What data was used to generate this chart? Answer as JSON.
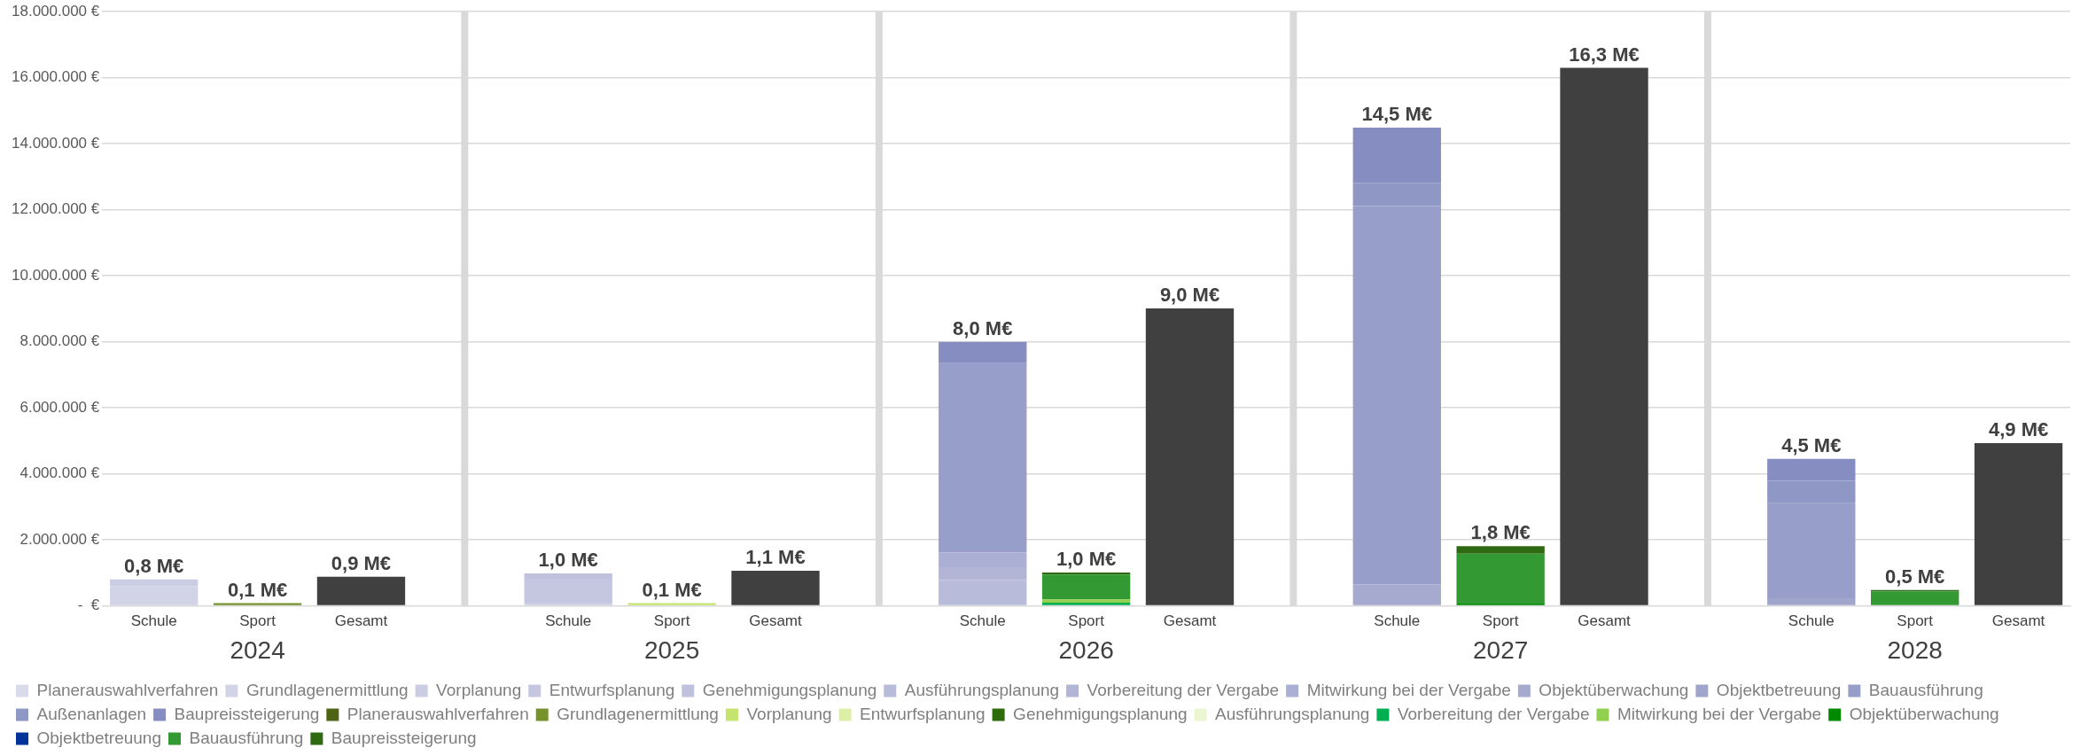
{
  "chart_data": {
    "type": "bar",
    "stacked": true,
    "grid": true,
    "legend": "bottom",
    "categories": [
      "Schule",
      "Sport",
      "Gesamt",
      null,
      "Schule",
      "Sport",
      "Gesamt",
      null,
      "Schule",
      "Sport",
      "Gesamt",
      null,
      "Schule",
      "Sport",
      "Gesamt",
      null,
      "Schule",
      "Sport",
      "Gesamt"
    ],
    "annotations": [
      "2024",
      "2025",
      "2026",
      "2027",
      "2028"
    ],
    "ylim": [
      0,
      18000000
    ],
    "yticks": [
      {
        "value": 0,
        "label": "-  €"
      },
      {
        "value": 2000000,
        "label": "2.000.000 €"
      },
      {
        "value": 4000000,
        "label": "4.000.000 €"
      },
      {
        "value": 6000000,
        "label": "6.000.000 €"
      },
      {
        "value": 8000000,
        "label": "8.000.000 €"
      },
      {
        "value": 10000000,
        "label": "10.000.000 €"
      },
      {
        "value": 12000000,
        "label": "12.000.000 €"
      },
      {
        "value": 14000000,
        "label": "14.000.000 €"
      },
      {
        "value": 16000000,
        "label": "16.000.000 €"
      },
      {
        "value": 18000000,
        "label": "18.000.000 €"
      }
    ],
    "totals": [
      "0,8 M€",
      "0,1 M€",
      "0,9 M€",
      null,
      "1,0 M€",
      "0,1 M€",
      "1,1 M€",
      null,
      "8,0 M€",
      "1,0 M€",
      "9,0 M€",
      null,
      "14,5 M€",
      "1,8 M€",
      "16,3 M€",
      null,
      "4,5 M€",
      "0,5 M€",
      "4,9 M€"
    ],
    "series": [
      {
        "name": "Planerauswahlverfahren",
        "color": "#d9daea",
        "values": [
          null,
          null,
          null,
          null,
          null,
          null,
          null,
          null,
          null,
          null,
          null,
          null,
          null,
          null,
          null,
          null,
          null,
          null,
          null
        ]
      },
      {
        "name": "Grundlagenermittlung",
        "color": "#d2d3e6",
        "values": [
          600000,
          null,
          null,
          null,
          null,
          null,
          null,
          null,
          null,
          null,
          null,
          null,
          null,
          null,
          null,
          null,
          null,
          null,
          null
        ]
      },
      {
        "name": "Vorplanung",
        "color": "#cbcde3",
        "values": [
          200000,
          null,
          null,
          null,
          100000,
          null,
          null,
          null,
          null,
          null,
          null,
          null,
          null,
          null,
          null,
          null,
          null,
          null,
          null
        ]
      },
      {
        "name": "Entwurfsplanung",
        "color": "#c5c7e0",
        "values": [
          null,
          null,
          null,
          null,
          720000,
          null,
          null,
          null,
          null,
          null,
          null,
          null,
          null,
          null,
          null,
          null,
          null,
          null,
          null
        ]
      },
      {
        "name": "Genehmigungsplanung",
        "color": "#bfc1dd",
        "values": [
          null,
          null,
          null,
          null,
          160000,
          null,
          null,
          null,
          null,
          null,
          null,
          null,
          null,
          null,
          null,
          null,
          null,
          null,
          null
        ]
      },
      {
        "name": "Ausführungsplanung",
        "color": "#b8bbd9",
        "values": [
          null,
          null,
          null,
          null,
          null,
          null,
          null,
          null,
          780000,
          null,
          null,
          null,
          null,
          null,
          null,
          null,
          null,
          null,
          null
        ]
      },
      {
        "name": "Vorbereitung der Vergabe",
        "color": "#b2b5d6",
        "values": [
          null,
          null,
          null,
          null,
          null,
          null,
          null,
          null,
          390000,
          null,
          null,
          null,
          null,
          null,
          null,
          null,
          null,
          null,
          null
        ]
      },
      {
        "name": "Mitwirkung bei der Vergabe",
        "color": "#abafd3",
        "values": [
          null,
          null,
          null,
          null,
          null,
          null,
          null,
          null,
          450000,
          null,
          null,
          null,
          null,
          null,
          null,
          null,
          null,
          null,
          null
        ]
      },
      {
        "name": "Objektüberwachung",
        "color": "#a6aacf",
        "values": [
          null,
          null,
          null,
          null,
          null,
          null,
          null,
          null,
          null,
          null,
          null,
          null,
          650000,
          null,
          null,
          null,
          null,
          null,
          null
        ]
      },
      {
        "name": "Objektbetreuung",
        "color": "#a0a5cc",
        "values": [
          null,
          null,
          null,
          null,
          null,
          null,
          null,
          null,
          null,
          null,
          null,
          null,
          null,
          null,
          null,
          null,
          230000,
          null,
          null
        ]
      },
      {
        "name": "Bauausführung",
        "color": "#979ec9",
        "values": [
          null,
          null,
          null,
          null,
          null,
          null,
          null,
          null,
          5730000,
          null,
          null,
          null,
          11460000,
          null,
          null,
          null,
          2880000,
          null,
          null
        ]
      },
      {
        "name": "Außenanlagen",
        "color": "#8f97c4",
        "values": [
          null,
          null,
          null,
          null,
          null,
          null,
          null,
          null,
          null,
          null,
          null,
          null,
          710000,
          null,
          null,
          null,
          680000,
          null,
          null
        ]
      },
      {
        "name": "Baupreissteigerung",
        "color": "#868dc0",
        "values": [
          null,
          null,
          null,
          null,
          null,
          null,
          null,
          null,
          650000,
          null,
          null,
          null,
          1670000,
          null,
          null,
          null,
          660000,
          null,
          null
        ]
      },
      {
        "name": "Planerauswahlverfahren",
        "color": "#4e6314",
        "values": [
          null,
          null,
          null,
          null,
          null,
          null,
          null,
          null,
          null,
          null,
          null,
          null,
          null,
          null,
          null,
          null,
          null,
          null,
          null
        ]
      },
      {
        "name": "Grundlagenermittlung",
        "color": "#76922a",
        "values": [
          null,
          80000,
          null,
          null,
          null,
          null,
          null,
          null,
          null,
          null,
          null,
          null,
          null,
          null,
          null,
          null,
          null,
          null,
          null
        ]
      },
      {
        "name": "Vorplanung",
        "color": "#c4e46e",
        "values": [
          null,
          null,
          null,
          null,
          null,
          80000,
          null,
          null,
          null,
          null,
          null,
          null,
          null,
          null,
          null,
          null,
          null,
          null,
          null
        ]
      },
      {
        "name": "Entwurfsplanung",
        "color": "#dbefa5",
        "values": [
          null,
          null,
          null,
          null,
          null,
          null,
          null,
          null,
          null,
          null,
          null,
          null,
          null,
          null,
          null,
          null,
          null,
          null,
          null
        ]
      },
      {
        "name": "Genehmigungsplanung",
        "color": "#2e6b0a",
        "values": [
          null,
          null,
          null,
          null,
          null,
          null,
          null,
          null,
          null,
          null,
          null,
          null,
          null,
          null,
          null,
          null,
          null,
          null,
          null
        ]
      },
      {
        "name": "Ausführungsplanung",
        "color": "#ebf5cf",
        "values": [
          null,
          null,
          null,
          null,
          null,
          null,
          null,
          null,
          null,
          null,
          null,
          null,
          null,
          null,
          null,
          null,
          null,
          null,
          null
        ]
      },
      {
        "name": "Vorbereitung der Vergabe",
        "color": "#00b050",
        "values": [
          null,
          null,
          null,
          null,
          null,
          null,
          null,
          null,
          null,
          100000,
          null,
          null,
          null,
          null,
          null,
          null,
          null,
          null,
          null
        ]
      },
      {
        "name": "Mitwirkung bei der Vergabe",
        "color": "#92d050",
        "values": [
          null,
          null,
          null,
          null,
          null,
          null,
          null,
          null,
          null,
          100000,
          null,
          null,
          null,
          null,
          null,
          null,
          null,
          null,
          null
        ]
      },
      {
        "name": "Objektüberwachung",
        "color": "#008a00",
        "values": [
          null,
          null,
          null,
          null,
          null,
          null,
          null,
          null,
          null,
          null,
          null,
          null,
          null,
          90000,
          null,
          null,
          null,
          null,
          null
        ]
      },
      {
        "name": "Objektbetreuung",
        "color": "#003399",
        "values": [
          null,
          null,
          null,
          null,
          null,
          null,
          null,
          null,
          null,
          null,
          null,
          null,
          null,
          null,
          null,
          null,
          null,
          null,
          null
        ]
      },
      {
        "name": "Bauausführung",
        "color": "#339933",
        "values": [
          null,
          null,
          null,
          null,
          null,
          null,
          null,
          null,
          null,
          750000,
          null,
          null,
          null,
          1490000,
          null,
          null,
          null,
          440000,
          null
        ]
      },
      {
        "name": "Baupreissteigerung",
        "color": "#2f6a12",
        "values": [
          null,
          null,
          null,
          null,
          null,
          null,
          null,
          null,
          null,
          60000,
          null,
          null,
          null,
          230000,
          null,
          null,
          null,
          40000,
          null
        ]
      },
      {
        "color": "#404040",
        "values": [
          null,
          null,
          880000,
          null,
          null,
          null,
          1060000,
          null,
          null,
          null,
          9010000,
          null,
          null,
          null,
          16300000,
          null,
          null,
          null,
          4930000
        ]
      }
    ]
  }
}
